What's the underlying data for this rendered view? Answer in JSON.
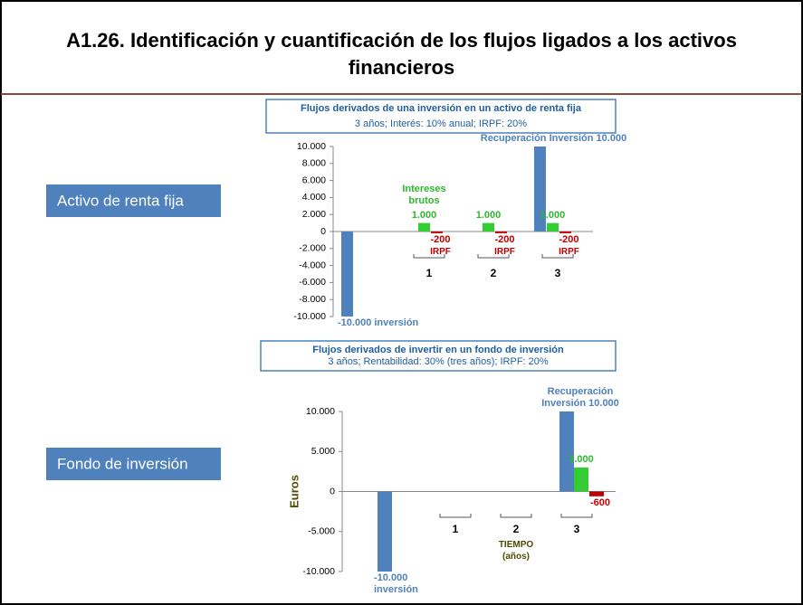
{
  "title": "A1.26. Identificación y cuantificación de los flujos ligados a los activos financieros",
  "chart_data": [
    {
      "type": "bar",
      "label": "Activo de renta fija",
      "title": "Flujos derivados de una inversión en un activo de renta fija",
      "subtitle": "3 años; Interés: 10% anual; IRPF: 20%",
      "categories": [
        null,
        "1",
        "2",
        "3"
      ],
      "series": [
        {
          "color": "#4f81bd",
          "values": [
            -10000,
            null,
            null,
            10000
          ],
          "value_labels": [
            "-10.000 inversión",
            null,
            null,
            "Recuperación Inversión 10.000"
          ]
        },
        {
          "color": "#33cc33",
          "values": [
            null,
            1000,
            1000,
            1000
          ],
          "value_labels": [
            null,
            "1.000",
            "1.000",
            "1.000"
          ]
        },
        {
          "color": "#c00000",
          "values": [
            null,
            -200,
            -200,
            -200
          ],
          "value_labels": [
            null,
            "-200",
            "-200",
            "-200"
          ]
        }
      ],
      "annotation": "Intereses brutos",
      "irpf_labels": [
        null,
        "IRPF",
        "IRPF",
        "IRPF"
      ],
      "ylim": [
        -10000,
        10000
      ],
      "yticks": [
        {
          "value": -10000,
          "label": "-10.000"
        },
        {
          "value": -8000,
          "label": "-8.000"
        },
        {
          "value": -6000,
          "label": "-6.000"
        },
        {
          "value": -4000,
          "label": "-4.000"
        },
        {
          "value": -2000,
          "label": "-2.000"
        },
        0,
        {
          "value": 2000,
          "label": "2.000"
        },
        {
          "value": 4000,
          "label": "4.000"
        },
        {
          "value": 6000,
          "label": "6.000"
        },
        {
          "value": 8000,
          "label": "8.000"
        },
        {
          "value": 10000,
          "label": "10.000"
        }
      ]
    },
    {
      "type": "bar",
      "label": "Fondo de inversión",
      "title": "Flujos derivados de invertir en un fondo de inversión",
      "subtitle": "3 años; Rentabilidad: 30% (tres años); IRPF: 20%",
      "y_label": "Euros",
      "x_label": "TIEMPO (años)",
      "categories": [
        null,
        "1",
        "2",
        "3"
      ],
      "series": [
        {
          "color": "#4f81bd",
          "values": [
            -10000,
            null,
            null,
            10000
          ],
          "value_labels": [
            "-10.000 inversión",
            null,
            null,
            "Recuperación Inversión 10.000"
          ]
        },
        {
          "color": "#33cc33",
          "values": [
            null,
            null,
            null,
            3000
          ],
          "value_labels": [
            null,
            null,
            null,
            "3.000"
          ]
        },
        {
          "color": "#c00000",
          "values": [
            null,
            null,
            null,
            -600
          ],
          "value_labels": [
            null,
            null,
            null,
            "-600"
          ]
        }
      ],
      "ylim": [
        -10000,
        10000
      ],
      "yticks": [
        {
          "value": -10000,
          "label": "-10.000"
        },
        {
          "value": -5000,
          "label": "-5.000"
        },
        0,
        {
          "value": 5000,
          "label": "5.000"
        },
        {
          "value": 10000,
          "label": "10.000"
        }
      ]
    }
  ]
}
